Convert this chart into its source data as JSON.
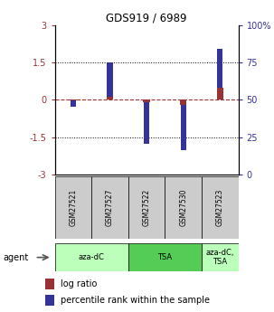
{
  "title": "GDS919 / 6989",
  "samples": [
    "GSM27521",
    "GSM27527",
    "GSM27522",
    "GSM27530",
    "GSM27523"
  ],
  "log_ratio": [
    -0.02,
    0.13,
    -0.08,
    -0.22,
    0.48
  ],
  "percentile_rank_left": [
    -0.28,
    1.5,
    -1.75,
    -2.0,
    2.05
  ],
  "ylim_left": [
    -3,
    3
  ],
  "ylim_right": [
    0,
    100
  ],
  "yticks_left": [
    -3,
    -1.5,
    0,
    1.5,
    3
  ],
  "yticks_right": [
    0,
    25,
    50,
    75,
    100
  ],
  "ytick_labels_left": [
    "-3",
    "-1.5",
    "0",
    "1.5",
    "3"
  ],
  "ytick_labels_right": [
    "0",
    "25",
    "50",
    "75",
    "100%"
  ],
  "groups": [
    {
      "label": "aza-dC",
      "span": [
        0,
        2
      ],
      "color": "#bbffbb"
    },
    {
      "label": "TSA",
      "span": [
        2,
        4
      ],
      "color": "#55cc55"
    },
    {
      "label": "aza-dC,\nTSA",
      "span": [
        4,
        5
      ],
      "color": "#bbffbb"
    }
  ],
  "log_ratio_color": "#993333",
  "percentile_color": "#333399",
  "sample_box_color": "#cccccc",
  "legend_labels": [
    "log ratio",
    "percentile rank within the sample"
  ]
}
